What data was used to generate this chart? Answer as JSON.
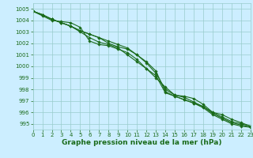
{
  "xlabel": "Graphe pression niveau de la mer (hPa)",
  "xlim": [
    0,
    23
  ],
  "ylim": [
    994.5,
    1005.5
  ],
  "yticks": [
    995,
    996,
    997,
    998,
    999,
    1000,
    1001,
    1002,
    1003,
    1004,
    1005
  ],
  "xticks": [
    0,
    1,
    2,
    3,
    4,
    5,
    6,
    7,
    8,
    9,
    10,
    11,
    12,
    13,
    14,
    15,
    16,
    17,
    18,
    19,
    20,
    21,
    22,
    23
  ],
  "background_color": "#cceeff",
  "grid_color": "#99cccc",
  "line_color": "#1a6b1a",
  "series": [
    [
      1004.8,
      1004.4,
      1004.0,
      1003.9,
      1003.8,
      1003.4,
      1002.2,
      1001.9,
      1001.8,
      1001.5,
      1001.2,
      1000.6,
      999.8,
      999.0,
      998.2,
      997.5,
      997.4,
      997.2,
      996.7,
      996.0,
      995.8,
      995.4,
      995.1,
      994.8
    ],
    [
      1004.8,
      1004.5,
      1004.1,
      1003.8,
      1003.5,
      1003.1,
      1002.8,
      1002.5,
      1002.2,
      1001.9,
      1001.6,
      1001.0,
      1000.3,
      999.4,
      998.0,
      997.5,
      997.3,
      996.9,
      996.5,
      996.0,
      995.6,
      995.2,
      995.0,
      994.8
    ],
    [
      1004.8,
      1004.5,
      1004.1,
      1003.8,
      1003.5,
      1003.1,
      1002.8,
      1002.5,
      1002.0,
      1001.7,
      1001.5,
      1001.0,
      1000.4,
      999.6,
      997.8,
      997.4,
      997.1,
      996.8,
      996.5,
      995.9,
      995.5,
      995.1,
      994.9,
      994.7
    ],
    [
      1004.8,
      1004.5,
      1004.1,
      1003.8,
      1003.5,
      1003.0,
      1002.5,
      1002.1,
      1001.9,
      1001.6,
      1001.0,
      1000.4,
      999.8,
      999.2,
      997.7,
      997.4,
      997.1,
      996.8,
      996.4,
      995.8,
      995.4,
      995.0,
      994.8,
      994.7
    ]
  ],
  "marker": "D",
  "markersize": 1.8,
  "linewidth": 0.8,
  "tick_fontsize": 5,
  "xlabel_fontsize": 6.5,
  "xlabel_fontweight": "bold",
  "tick_color": "#1a6b1a",
  "xlabel_color": "#1a6b1a"
}
